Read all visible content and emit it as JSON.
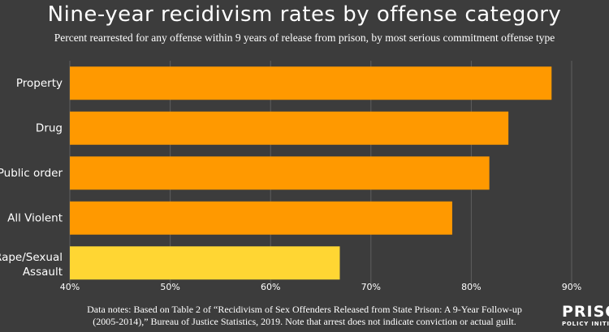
{
  "title": "Nine-year recidivism rates by offense category",
  "subtitle": "Percent rearrested for any offense within 9 years of release from prison, by most serious commitment offense type",
  "notes": {
    "line1": "Data notes: Based on Table 2 of “Recidivism of Sex Offenders Released from State Prison: A 9-Year Follow-up",
    "line2": "(2005-2014),” Bureau of Justice Statistics, 2019. Note that arrest does not indicate conviction or actual guilt."
  },
  "logo": {
    "line1": "PRISON",
    "line2": "POLICY INITIATIVE"
  },
  "colors": {
    "background": "#3c3c3c",
    "bar": "#ff9900",
    "highlight_bar": "#ffd633",
    "grid": "#5e5e5e",
    "text": "#ffffff"
  },
  "chart_data": {
    "type": "bar",
    "orientation": "horizontal",
    "categories": [
      "Property",
      "Drug",
      "Public order",
      "All Violent",
      "Rape/Sexual Assault"
    ],
    "values": [
      88.0,
      83.7,
      81.8,
      78.1,
      66.9
    ],
    "highlight": [
      "Rape/Sexual Assault"
    ],
    "xlim": [
      40,
      90
    ],
    "xticks": [
      "40%",
      "50%",
      "60%",
      "70%",
      "80%",
      "90%"
    ],
    "xtick_values": [
      40,
      50,
      60,
      70,
      80,
      90
    ],
    "grid": true
  }
}
